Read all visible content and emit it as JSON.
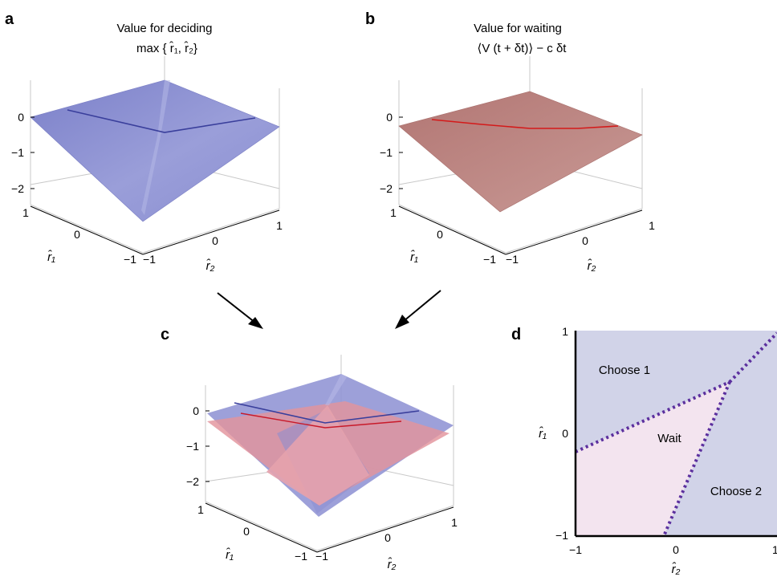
{
  "colors": {
    "deciding_surface": "#8f93d4",
    "deciding_line": "#3a3f9c",
    "waiting_surface": "#b87e7b",
    "waiting_line": "#d41a1a",
    "overlap_red": "#e3949c",
    "axis_gray": "#c8c8c8",
    "choose_region": "#d1d3e8",
    "wait_region": "#f3e4ef",
    "boundary": "#5b2f9e"
  },
  "panels": {
    "a": {
      "label": "a",
      "title_line1": "Value for deciding",
      "title_line2": "max { r̂₁, r̂₂}"
    },
    "b": {
      "label": "b",
      "title_line1": "Value for waiting",
      "title_line2": "⟨V (t + δt)⟩ −  c δt"
    },
    "c": {
      "label": "c"
    },
    "d": {
      "label": "d"
    }
  },
  "axes3d": {
    "z_ticks": [
      "0",
      "−1",
      "−2"
    ],
    "r1_ticks": [
      "1",
      "0",
      "−1"
    ],
    "r2_ticks": [
      "−1",
      "0",
      "1"
    ],
    "r1_label": "r̂₁",
    "r2_label": "r̂₂"
  },
  "chart_data": [
    {
      "type": "surface",
      "panel": "a",
      "title": "Value for deciding max { r̂₁, r̂₂}",
      "x_label": "r̂₂",
      "y_label": "r̂₁",
      "x_range": [
        -1,
        1
      ],
      "y_range": [
        -1,
        1
      ],
      "z_range": [
        -2.3,
        0.4
      ],
      "z_ticks": [
        0,
        -1,
        -2
      ],
      "corners": {
        "r1=1,r2=-1": 0.0,
        "r1=1,r2=1": 0.3,
        "r1=-1,r2=1": -0.5,
        "r1=-1,r2=-1": -2.2
      }
    },
    {
      "type": "surface",
      "panel": "b",
      "title": "Value for waiting ⟨V (t + δt)⟩ − c δt",
      "x_label": "r̂₂",
      "y_label": "r̂₁",
      "x_range": [
        -1,
        1
      ],
      "y_range": [
        -1,
        1
      ],
      "z_range": [
        -2.3,
        0.4
      ],
      "z_ticks": [
        0,
        -1,
        -2
      ],
      "corners": {
        "r1=1,r2=-1": -0.25,
        "r1=1,r2=1": -0.1,
        "r1=-1,r2=1": -0.6,
        "r1=-1,r2=-1": -1.7
      }
    },
    {
      "type": "surface",
      "panel": "c",
      "title": "",
      "x_label": "r̂₂",
      "y_label": "r̂₁",
      "x_range": [
        -1,
        1
      ],
      "y_range": [
        -1,
        1
      ],
      "z_range": [
        -2.3,
        0.4
      ],
      "z_ticks": [
        0,
        -1,
        -2
      ],
      "series": [
        {
          "name": "",
          "color": "#8f93d4"
        },
        {
          "name": "",
          "color": "#e3949c"
        }
      ]
    },
    {
      "type": "region-map",
      "panel": "d",
      "x_label": "r̂₂",
      "y_label": "r̂₁",
      "xlim": [
        -1,
        1
      ],
      "ylim": [
        -1,
        1
      ],
      "x_ticks": [
        "−1",
        "0",
        "1"
      ],
      "y_ticks": [
        "1",
        "0",
        "−1"
      ],
      "regions": [
        "Choose 1",
        "Wait",
        "Choose 2"
      ],
      "boundaries": [
        {
          "from": [
            -1,
            -0.15
          ],
          "to": [
            0.05,
            0.48
          ]
        },
        {
          "from": [
            0.05,
            0.48
          ],
          "to": [
            1.0,
            1.0
          ]
        },
        {
          "from": [
            0.05,
            0.48
          ],
          "to": [
            -0.15,
            -1.0
          ]
        }
      ]
    }
  ]
}
